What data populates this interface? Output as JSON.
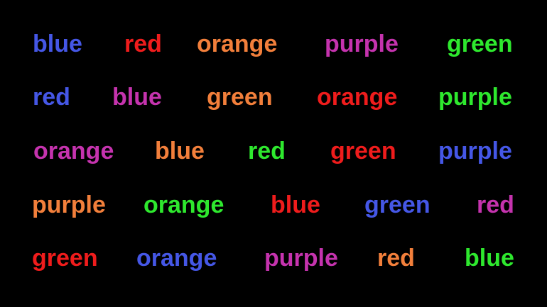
{
  "colors": {
    "blue": "#4557e6",
    "red": "#ef1c1c",
    "orange": "#f27f3b",
    "purple": "#c533ae",
    "green": "#2ee82e",
    "background": "#000000"
  },
  "rows": [
    {
      "words": [
        {
          "text": "blue",
          "color": "blue"
        },
        {
          "text": "red",
          "color": "red"
        },
        {
          "text": "orange",
          "color": "orange"
        },
        {
          "text": "purple",
          "color": "purple"
        },
        {
          "text": "green",
          "color": "green"
        }
      ]
    },
    {
      "words": [
        {
          "text": "red",
          "color": "blue"
        },
        {
          "text": "blue",
          "color": "purple"
        },
        {
          "text": "green",
          "color": "orange"
        },
        {
          "text": "orange",
          "color": "red"
        },
        {
          "text": "purple",
          "color": "green"
        }
      ]
    },
    {
      "words": [
        {
          "text": "orange",
          "color": "purple"
        },
        {
          "text": "blue",
          "color": "orange"
        },
        {
          "text": "red",
          "color": "green"
        },
        {
          "text": "green",
          "color": "red"
        },
        {
          "text": "purple",
          "color": "blue"
        }
      ]
    },
    {
      "words": [
        {
          "text": "purple",
          "color": "orange"
        },
        {
          "text": "orange",
          "color": "green"
        },
        {
          "text": "blue",
          "color": "red"
        },
        {
          "text": "green",
          "color": "blue"
        },
        {
          "text": "red",
          "color": "purple"
        }
      ]
    },
    {
      "words": [
        {
          "text": "green",
          "color": "red"
        },
        {
          "text": "orange",
          "color": "blue"
        },
        {
          "text": "purple",
          "color": "purple"
        },
        {
          "text": "red",
          "color": "orange"
        },
        {
          "text": "blue",
          "color": "green"
        }
      ]
    }
  ]
}
